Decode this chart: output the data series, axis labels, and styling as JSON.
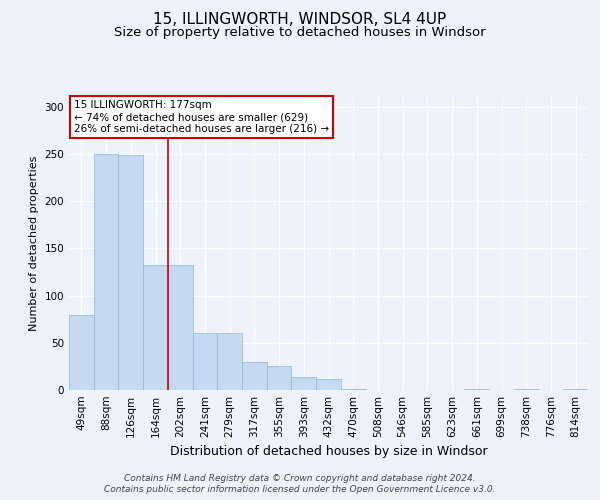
{
  "title": "15, ILLINGWORTH, WINDSOR, SL4 4UP",
  "subtitle": "Size of property relative to detached houses in Windsor",
  "xlabel": "Distribution of detached houses by size in Windsor",
  "ylabel": "Number of detached properties",
  "categories": [
    "49sqm",
    "88sqm",
    "126sqm",
    "164sqm",
    "202sqm",
    "241sqm",
    "279sqm",
    "317sqm",
    "355sqm",
    "393sqm",
    "432sqm",
    "470sqm",
    "508sqm",
    "546sqm",
    "585sqm",
    "623sqm",
    "661sqm",
    "699sqm",
    "738sqm",
    "776sqm",
    "814sqm"
  ],
  "values": [
    80,
    250,
    249,
    133,
    133,
    60,
    60,
    30,
    25,
    14,
    12,
    1,
    0,
    0,
    0,
    0,
    1,
    0,
    1,
    0,
    1
  ],
  "bar_color": "#c5d9f1",
  "bar_edge_color": "#8db4e2",
  "vline_color": "#cc0000",
  "vline_x": 3.5,
  "annotation_text": "15 ILLINGWORTH: 177sqm\n← 74% of detached houses are smaller (629)\n26% of semi-detached houses are larger (216) →",
  "annotation_box_color": "#ffffff",
  "annotation_box_edge_color": "#cc0000",
  "background_color": "#eef2fb",
  "plot_bg_color": "#eef2fb",
  "grid_color": "#ffffff",
  "ylim": [
    0,
    310
  ],
  "yticks": [
    0,
    50,
    100,
    150,
    200,
    250,
    300
  ],
  "footer_text": "Contains HM Land Registry data © Crown copyright and database right 2024.\nContains public sector information licensed under the Open Government Licence v3.0.",
  "title_fontsize": 11,
  "subtitle_fontsize": 9.5,
  "ylabel_fontsize": 8,
  "xlabel_fontsize": 9,
  "tick_fontsize": 7.5,
  "annotation_fontsize": 7.5,
  "footer_fontsize": 6.5
}
